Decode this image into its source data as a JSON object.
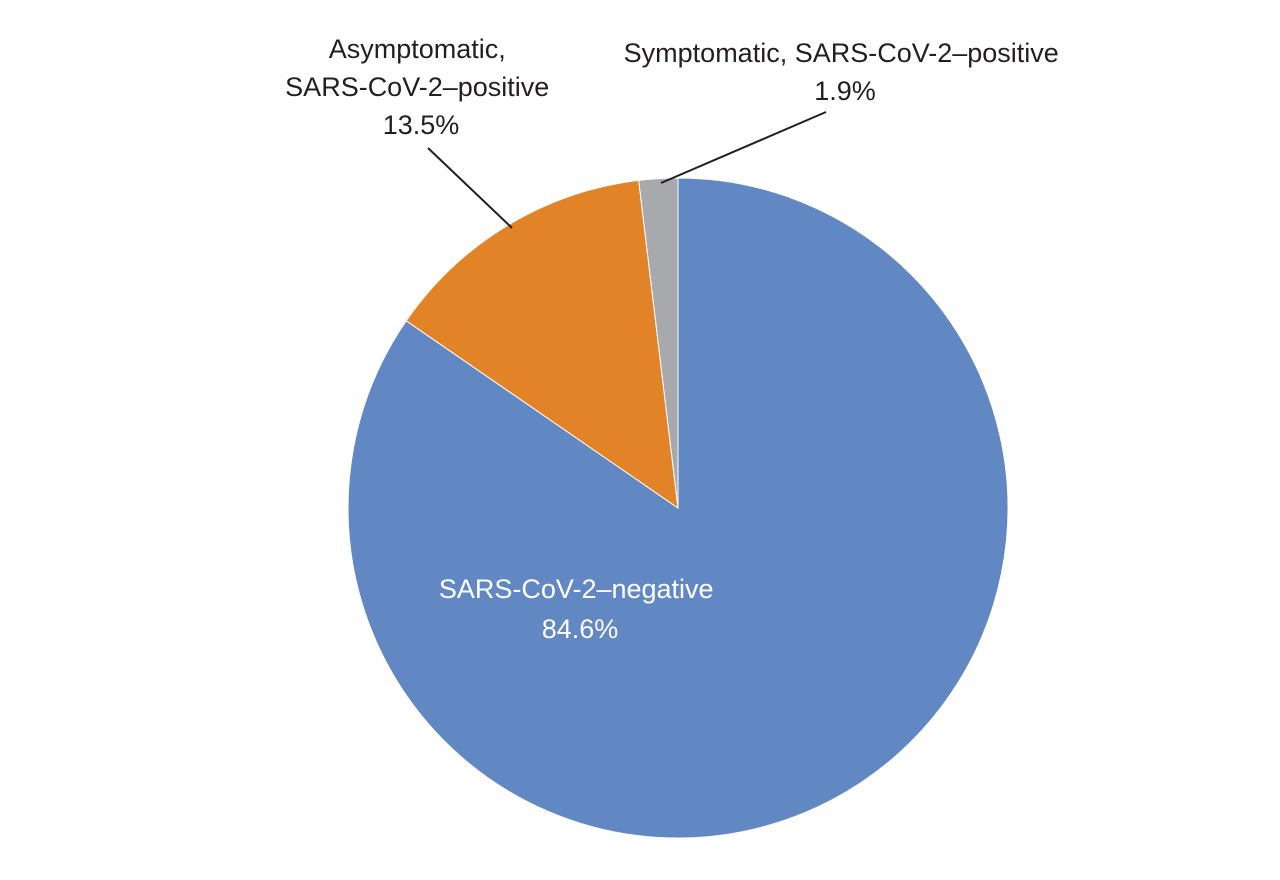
{
  "chart_data": {
    "type": "pie",
    "title": "",
    "start_angle_deg": 0,
    "direction": "clockwise",
    "slices": [
      {
        "key": "negative",
        "lines": [
          "SARS-CoV-2–negative"
        ],
        "value_label": "84.6%",
        "value": 84.6,
        "color": "#6288c3"
      },
      {
        "key": "asymptomatic",
        "lines": [
          "Asymptomatic,",
          "SARS-CoV-2–positive"
        ],
        "value_label": "13.5%",
        "value": 13.5,
        "color": "#e38327"
      },
      {
        "key": "symptomatic",
        "lines": [
          "Symptomatic, SARS-CoV-2–positive"
        ],
        "value_label": "1.9%",
        "value": 1.9,
        "color": "#a8a9ad"
      }
    ]
  }
}
